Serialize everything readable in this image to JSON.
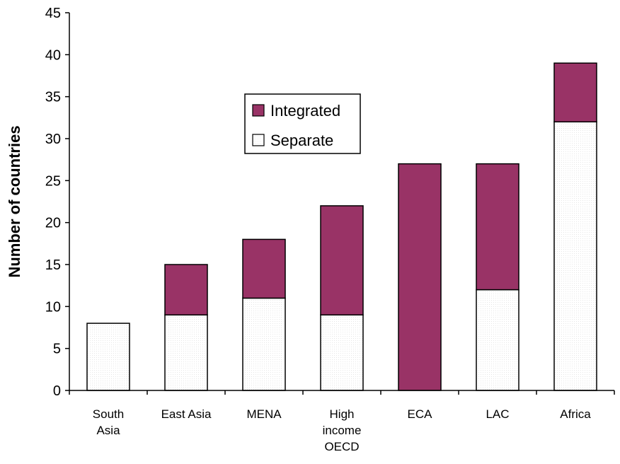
{
  "chart_data": {
    "type": "bar",
    "stacked": true,
    "categories": [
      "South Asia",
      "East Asia",
      "MENA",
      "High income OECD",
      "ECA",
      "LAC",
      "Africa"
    ],
    "category_lines": [
      [
        "South",
        "Asia"
      ],
      [
        "East Asia"
      ],
      [
        "MENA"
      ],
      [
        "High",
        "income",
        "OECD"
      ],
      [
        "ECA"
      ],
      [
        "LAC"
      ],
      [
        "Africa"
      ]
    ],
    "series": [
      {
        "name": "Separate",
        "values": [
          8,
          9,
          11,
          9,
          0,
          12,
          32
        ],
        "color": "#ffffff"
      },
      {
        "name": "Integrated",
        "values": [
          0,
          6,
          7,
          13,
          27,
          15,
          7
        ],
        "color": "#993366"
      }
    ],
    "legend_order": [
      "Integrated",
      "Separate"
    ],
    "xlabel": "",
    "ylabel": "Number of countries",
    "ylim": [
      0,
      45
    ],
    "yticks": [
      0,
      5,
      10,
      15,
      20,
      25,
      30,
      35,
      40,
      45
    ],
    "grid": false,
    "legend_position": "upper-center"
  }
}
